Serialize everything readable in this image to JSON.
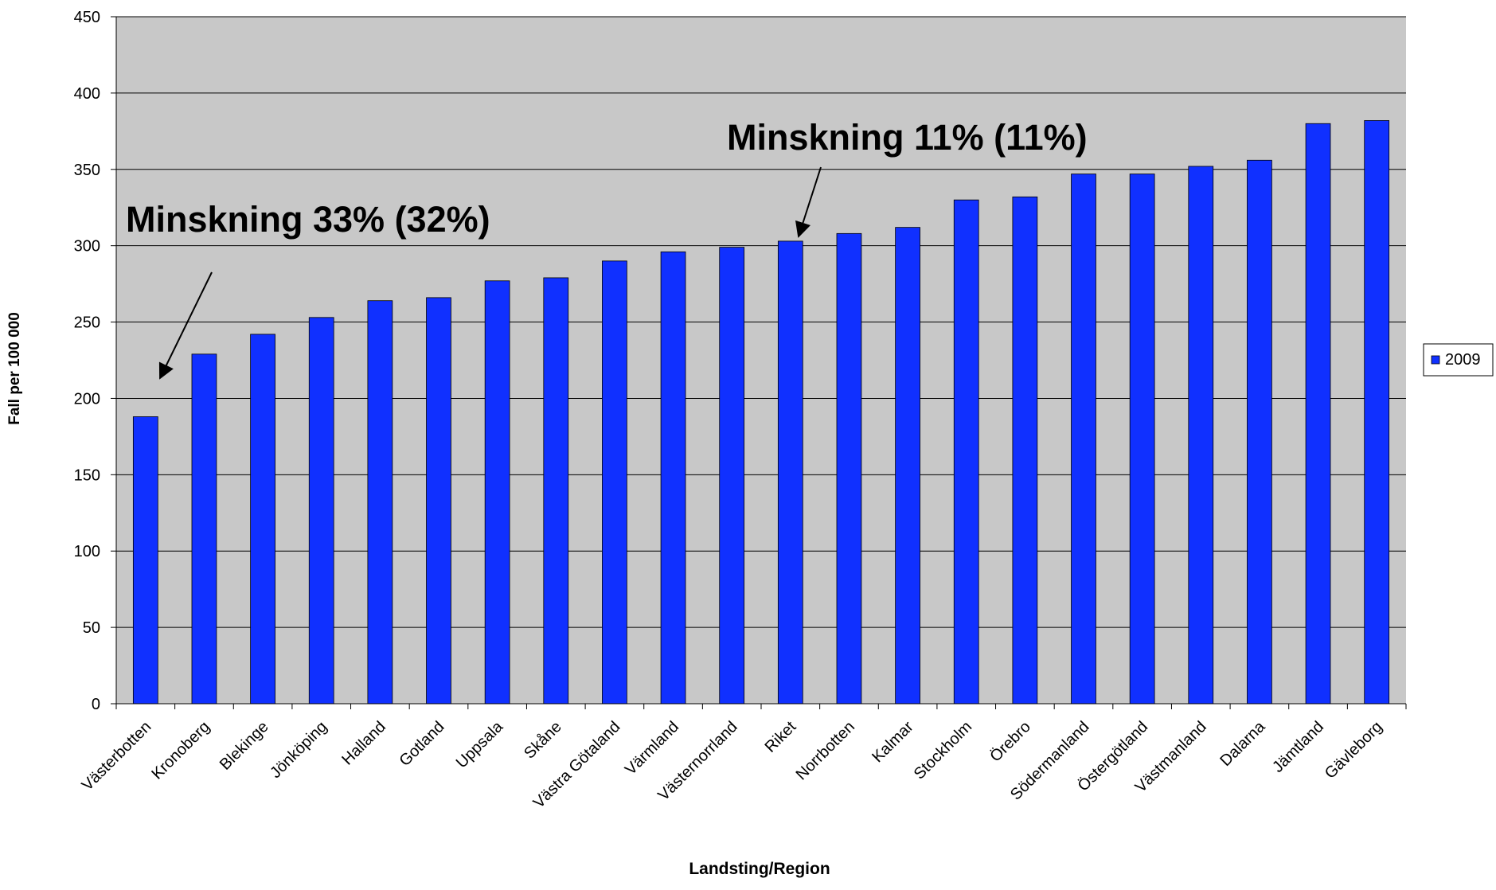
{
  "chart_data": {
    "type": "bar",
    "x_label": "Landsting/Region",
    "y_label": "Fall per 100 000",
    "categories": [
      "Västerbotten",
      "Kronoberg",
      "Blekinge",
      "Jönköping",
      "Halland",
      "Gotland",
      "Uppsala",
      "Skåne",
      "Västra Götaland",
      "Värmland",
      "Västernorrland",
      "Riket",
      "Norrbotten",
      "Kalmar",
      "Stockholm",
      "Örebro",
      "Södermanland",
      "Östergötland",
      "Västmanland",
      "Dalarna",
      "Jämtland",
      "Gävleborg"
    ],
    "series": [
      {
        "name": "2009",
        "color": "#1030ff",
        "values": [
          188,
          229,
          242,
          253,
          264,
          266,
          277,
          279,
          290,
          296,
          299,
          303,
          308,
          312,
          330,
          332,
          347,
          347,
          352,
          356,
          380,
          382
        ]
      }
    ],
    "ylim": [
      0,
      450
    ],
    "yticks": [
      0,
      50,
      100,
      150,
      200,
      250,
      300,
      350,
      400,
      450
    ],
    "grid": true,
    "legend": "right",
    "annotations": [
      "Minskning 33% (32%)",
      "Minskning 11% (11%)"
    ]
  }
}
